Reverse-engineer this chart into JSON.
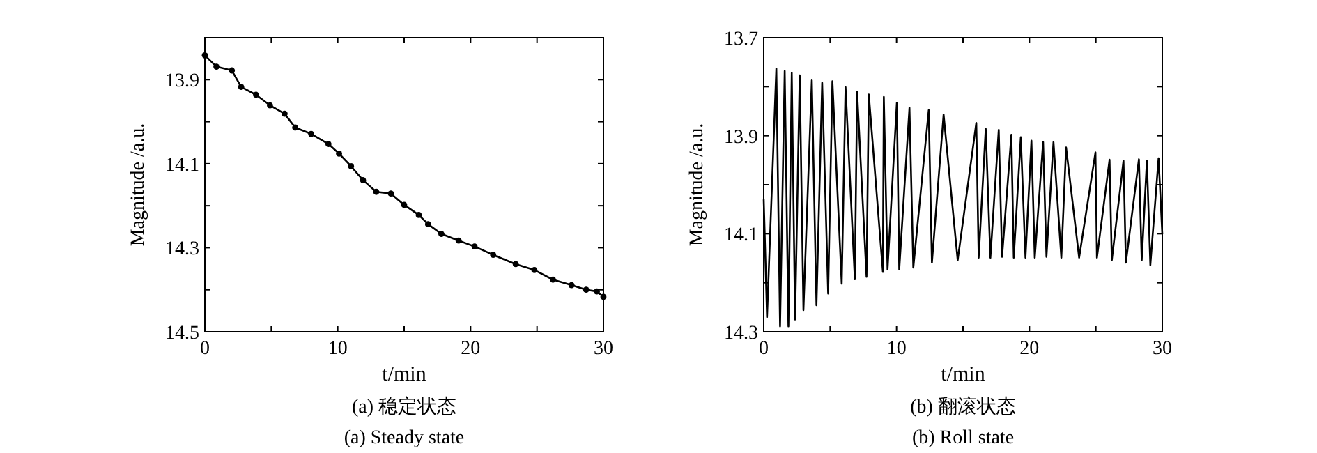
{
  "chart_data": [
    {
      "type": "line",
      "title": "(a) 稳定状态",
      "subtitle": "(a) Steady state",
      "xlabel": "t/min",
      "ylabel": "Magnitude /a.u.",
      "xlim": [
        0,
        30
      ],
      "xticks": [
        0,
        {
          "value": 5,
          "label": null
        },
        10,
        {
          "value": 15,
          "label": null
        },
        20,
        {
          "value": 25,
          "label": null
        },
        30
      ],
      "ylim": [
        14.5,
        13.8
      ],
      "yticks": [
        13.9,
        {
          "value": 14.0,
          "label": null
        },
        14.1,
        {
          "value": 14.2,
          "label": null
        },
        14.3,
        {
          "value": 14.4,
          "label": null
        },
        14.5
      ],
      "marker": "circle",
      "line_style": "solid",
      "series": [
        {
          "color": "#000000",
          "x": [
            0,
            0.87,
            2.03,
            2.73,
            3.85,
            4.9,
            6.0,
            6.8,
            8.0,
            9.3,
            10.1,
            11.0,
            11.9,
            12.9,
            14.0,
            15.0,
            16.1,
            16.8,
            17.8,
            19.1,
            20.3,
            21.7,
            23.4,
            24.8,
            26.2,
            27.6,
            28.7,
            29.5,
            30
          ],
          "values": [
            13.842,
            13.869,
            13.878,
            13.917,
            13.936,
            13.961,
            13.981,
            14.014,
            14.029,
            14.053,
            14.076,
            14.106,
            14.139,
            14.167,
            14.171,
            14.198,
            14.222,
            14.244,
            14.267,
            14.283,
            14.297,
            14.317,
            14.339,
            14.353,
            14.376,
            14.389,
            14.4,
            14.404,
            14.417
          ]
        }
      ]
    },
    {
      "type": "line",
      "title": "(b) 翻滚状态",
      "subtitle": "(b) Roll state",
      "xlabel": "t/min",
      "ylabel": "Magnitude /a.u.",
      "xlim": [
        0,
        30
      ],
      "xticks": [
        0,
        {
          "value": 5,
          "label": null
        },
        10,
        {
          "value": 15,
          "label": null
        },
        20,
        {
          "value": 25,
          "label": null
        },
        30
      ],
      "ylim": [
        14.3,
        13.7
      ],
      "yticks": [
        13.7,
        {
          "value": 13.8,
          "label": null
        },
        13.9,
        {
          "value": 14.0,
          "label": null
        },
        14.1,
        {
          "value": 14.2,
          "label": null
        },
        14.3
      ],
      "marker": "none",
      "line_style": "solid",
      "series": [
        {
          "color": "#000000",
          "x": [
            0,
            0.25,
            0.95,
            1.23,
            1.58,
            1.86,
            2.11,
            2.36,
            2.71,
            2.99,
            3.62,
            3.97,
            4.4,
            4.85,
            5.17,
            5.87,
            6.16,
            6.86,
            7.03,
            7.74,
            7.91,
            8.97,
            9.04,
            9.32,
            10.02,
            10.2,
            10.97,
            11.26,
            12.42,
            12.66,
            13.54,
            14.6,
            16.0,
            16.18,
            16.71,
            17.06,
            17.69,
            17.94,
            18.64,
            18.82,
            19.35,
            19.7,
            20.15,
            20.4,
            21.03,
            21.28,
            21.81,
            22.4,
            22.76,
            23.74,
            24.97,
            25.08,
            26.03,
            26.2,
            27.08,
            27.26,
            28.24,
            28.45,
            28.84,
            29.1,
            29.72,
            30
          ],
          "values": [
            14.03,
            14.27,
            13.763,
            14.289,
            13.768,
            14.289,
            13.772,
            14.275,
            13.777,
            14.256,
            13.787,
            14.246,
            13.792,
            14.222,
            13.789,
            14.202,
            13.801,
            14.193,
            13.811,
            14.188,
            13.816,
            14.178,
            13.821,
            14.173,
            13.833,
            14.173,
            13.843,
            14.169,
            13.848,
            14.159,
            13.857,
            14.154,
            13.874,
            14.149,
            13.886,
            14.149,
            13.888,
            14.147,
            13.898,
            14.149,
            13.903,
            14.149,
            13.91,
            14.149,
            13.913,
            14.147,
            13.913,
            14.149,
            13.924,
            14.149,
            13.934,
            14.149,
            13.949,
            14.154,
            13.951,
            14.159,
            13.948,
            14.154,
            13.951,
            14.164,
            13.946,
            14.101
          ]
        }
      ]
    }
  ]
}
